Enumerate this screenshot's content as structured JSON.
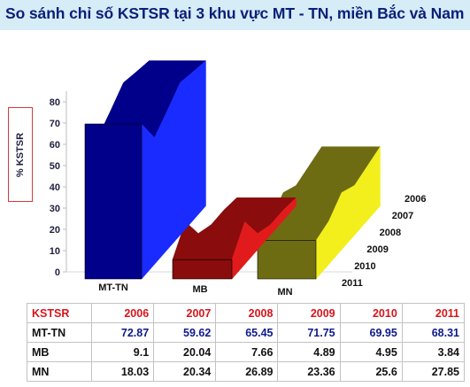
{
  "title": "So sánh chỉ số KSTSR tại 3 khu vực MT - TN, miền Bắc và Nam",
  "colors": {
    "MT-TN": "#1a2bff",
    "MB": "#e11b1b",
    "MN": "#f2ef1c",
    "title_bg": "#d6ecf7",
    "table_header": "#d8141b"
  },
  "chart_data": {
    "type": "area",
    "three_d": true,
    "title": "So sánh chỉ số KSTSR tại 3 khu vực MT - TN, miền Bắc và Nam",
    "ylabel": "% KSTSR",
    "ylim": [
      0,
      80
    ],
    "yticks": [
      0,
      10,
      20,
      30,
      40,
      50,
      60,
      70,
      80
    ],
    "categories": [
      "2006",
      "2007",
      "2008",
      "2009",
      "2010",
      "2011"
    ],
    "series": [
      {
        "name": "MT-TN",
        "values": [
          72.87,
          59.62,
          65.45,
          71.75,
          69.95,
          68.31
        ]
      },
      {
        "name": "MB",
        "values": [
          9.1,
          20.04,
          7.66,
          4.89,
          4.95,
          3.84
        ]
      },
      {
        "name": "MN",
        "values": [
          18.03,
          20.34,
          26.89,
          23.36,
          25.6,
          27.85
        ]
      }
    ]
  },
  "table": {
    "corner": "KSTSR",
    "years": [
      "2006",
      "2007",
      "2008",
      "2009",
      "2010",
      "2011"
    ],
    "rows": [
      {
        "label": "MT-TN",
        "values": [
          "72.87",
          "59.62",
          "65.45",
          "71.75",
          "69.95",
          "68.31"
        ]
      },
      {
        "label": "MB",
        "values": [
          "9.1",
          "20.04",
          "7.66",
          "4.89",
          "4.95",
          "3.84"
        ]
      },
      {
        "label": "MN",
        "values": [
          "18.03",
          "20.34",
          "26.89",
          "23.36",
          "25.6",
          "27.85"
        ]
      }
    ]
  }
}
